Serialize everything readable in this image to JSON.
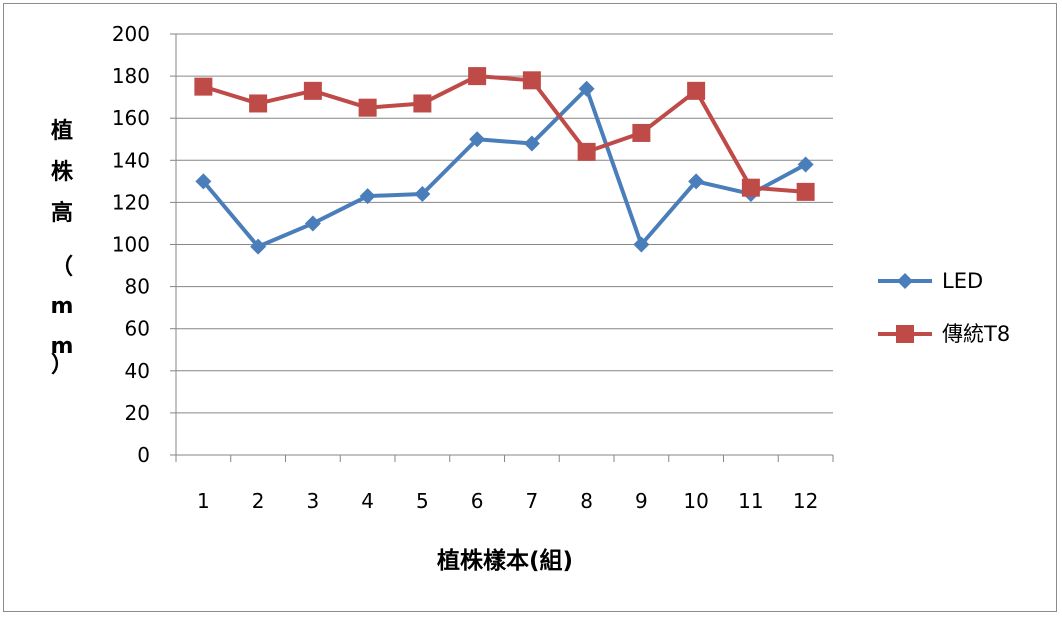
{
  "chart_data": {
    "type": "line",
    "title": "",
    "xlabel": "植株樣本(組)",
    "ylabel": "植株高（mm）",
    "categories": [
      "1",
      "2",
      "3",
      "4",
      "5",
      "6",
      "7",
      "8",
      "9",
      "10",
      "11",
      "12"
    ],
    "ylim": [
      0,
      200
    ],
    "yticks": [
      0,
      20,
      40,
      60,
      80,
      100,
      120,
      140,
      160,
      180,
      200
    ],
    "grid": true,
    "legend_position": "right",
    "series": [
      {
        "name": "LED",
        "color": "#4a7ebb",
        "marker": "diamond",
        "values": [
          130,
          99,
          110,
          123,
          124,
          150,
          148,
          174,
          100,
          130,
          124,
          138
        ]
      },
      {
        "name": "傳統T8",
        "color": "#be4b48",
        "marker": "square",
        "values": [
          175,
          167,
          173,
          165,
          167,
          180,
          178,
          144,
          153,
          173,
          127,
          125
        ]
      }
    ]
  }
}
